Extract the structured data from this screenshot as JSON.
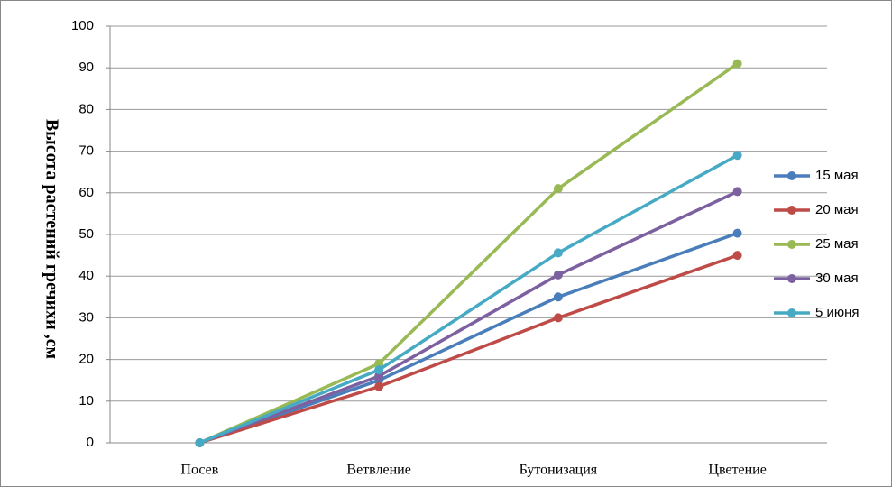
{
  "chart_data": {
    "type": "line",
    "y_label": "Высота растений гречихи ,см",
    "categories": [
      "Посев",
      "Ветвление",
      "Бутонизация",
      "Цветение"
    ],
    "series": [
      {
        "name": "15 мая",
        "color": "#4a7ebb",
        "values": [
          0,
          15,
          35,
          50.3
        ]
      },
      {
        "name": "20 мая",
        "color": "#be4b48",
        "values": [
          0,
          13.5,
          30,
          45
        ]
      },
      {
        "name": "25 мая",
        "color": "#98b954",
        "values": [
          0,
          19,
          61,
          91
        ]
      },
      {
        "name": "30 мая",
        "color": "#7d60a0",
        "values": [
          0,
          16,
          40.3,
          60.3
        ]
      },
      {
        "name": "5 июня",
        "color": "#46aac5",
        "values": [
          0,
          17.5,
          45.6,
          69
        ]
      }
    ],
    "ylim": [
      0,
      100
    ],
    "yticks": [
      0,
      10,
      20,
      30,
      40,
      50,
      60,
      70,
      80,
      90,
      100
    ],
    "grid": true,
    "legend": "right"
  }
}
